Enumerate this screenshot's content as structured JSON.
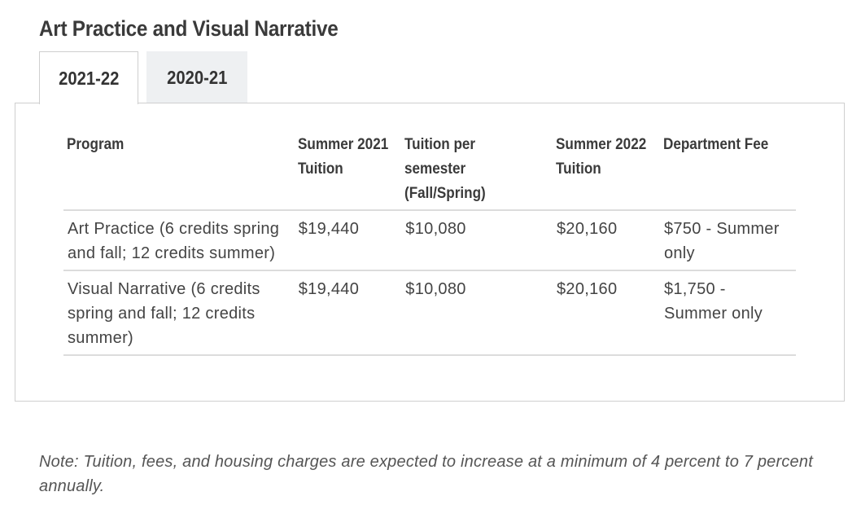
{
  "page": {
    "title": "Art Practice and Visual Narrative"
  },
  "tabs": [
    {
      "label": "2021-22",
      "active": true
    },
    {
      "label": "2020-21",
      "active": false
    }
  ],
  "table": {
    "headers": {
      "program": "Program",
      "summer_2021": "Summer 2021 Tuition",
      "per_semester": "Tuition per semester (Fall/Spring)",
      "summer_2022": "Summer 2022 Tuition",
      "department_fee": "Department Fee"
    },
    "rows": [
      {
        "program": "Art Practice (6 credits spring and fall; 12 credits summer)",
        "summer_2021": "$19,440",
        "per_semester": "$10,080",
        "summer_2022": "$20,160",
        "department_fee": "$750 - Summer only"
      },
      {
        "program": "Visual Narrative (6 credits spring and fall; 12 credits summer)",
        "summer_2021": "$19,440",
        "per_semester": "$10,080",
        "summer_2022": "$20,160",
        "department_fee": "$1,750 - Summer only"
      }
    ]
  },
  "note": "Note: Tuition, fees, and housing charges are expected to increase at a minimum of 4 percent to 7 percent annually.",
  "colors": {
    "text": "#333333",
    "border": "#cfcfcf",
    "inactive_tab_bg": "#eef0f2"
  }
}
